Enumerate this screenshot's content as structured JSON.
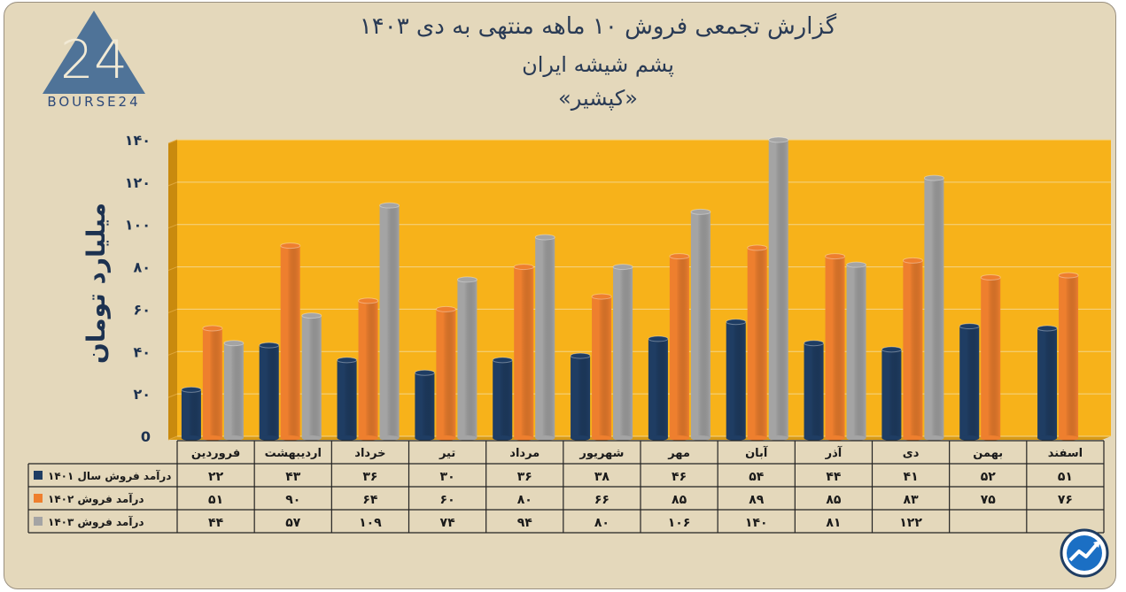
{
  "titles": {
    "line1": "گزارش تجمعی فروش ۱۰ ماهه منتهی به دی ۱۴۰۳",
    "line2": "پشم شیشه ایران",
    "line3": "«کپشیر»"
  },
  "logo": {
    "text": "BOURSE24",
    "mark": "24"
  },
  "colors": {
    "plot_bg": "#f7b21a",
    "series_1401": "#1f3d63",
    "series_1402": "#ee7f2e",
    "series_1403": "#a4a4a4",
    "axis_text": "#1d3250"
  },
  "chart_data": {
    "type": "bar",
    "ylabel": "میلیارد تومان",
    "ylim": [
      0,
      140
    ],
    "yticks": [
      0,
      20,
      40,
      60,
      80,
      100,
      120,
      140
    ],
    "ytick_labels": [
      "0",
      "۲۰",
      "۴۰",
      "۶۰",
      "۸۰",
      "۱۰۰",
      "۱۲۰",
      "۱۴۰"
    ],
    "categories": [
      "فروردین",
      "اردیبهشت",
      "خرداد",
      "تیر",
      "مرداد",
      "شهریور",
      "مهر",
      "آبان",
      "آذر",
      "دی",
      "بهمن",
      "اسفند"
    ],
    "series": [
      {
        "name": "درآمد فروش سال ۱۴۰۱",
        "values": [
          22,
          43,
          36,
          30,
          36,
          38,
          46,
          54,
          44,
          41,
          52,
          51
        ],
        "labels": [
          "۲۲",
          "۴۳",
          "۳۶",
          "۳۰",
          "۳۶",
          "۳۸",
          "۴۶",
          "۵۴",
          "۴۴",
          "۴۱",
          "۵۲",
          "۵۱"
        ]
      },
      {
        "name": "درآمد فروش ۱۴۰۲",
        "values": [
          51,
          90,
          64,
          60,
          80,
          66,
          85,
          89,
          85,
          83,
          75,
          76
        ],
        "labels": [
          "۵۱",
          "۹۰",
          "۶۴",
          "۶۰",
          "۸۰",
          "۶۶",
          "۸۵",
          "۸۹",
          "۸۵",
          "۸۳",
          "۷۵",
          "۷۶"
        ]
      },
      {
        "name": "درآمد فروش ۱۴۰۳",
        "values": [
          44,
          57,
          109,
          74,
          94,
          80,
          106,
          140,
          81,
          122,
          null,
          null
        ],
        "labels": [
          "۴۴",
          "۵۷",
          "۱۰۹",
          "۷۴",
          "۹۴",
          "۸۰",
          "۱۰۶",
          "۱۴۰",
          "۸۱",
          "۱۲۲",
          "",
          ""
        ]
      }
    ]
  }
}
